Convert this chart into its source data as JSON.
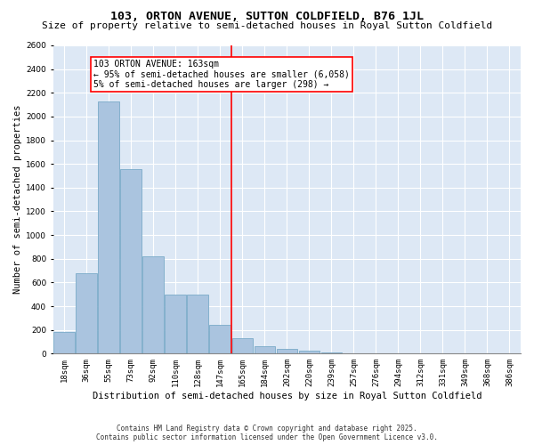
{
  "title": "103, ORTON AVENUE, SUTTON COLDFIELD, B76 1JL",
  "subtitle": "Size of property relative to semi-detached houses in Royal Sutton Coldfield",
  "xlabel": "Distribution of semi-detached houses by size in Royal Sutton Coldfield",
  "ylabel": "Number of semi-detached properties",
  "categories": [
    "18sqm",
    "36sqm",
    "55sqm",
    "73sqm",
    "92sqm",
    "110sqm",
    "128sqm",
    "147sqm",
    "165sqm",
    "184sqm",
    "202sqm",
    "220sqm",
    "239sqm",
    "257sqm",
    "276sqm",
    "294sqm",
    "312sqm",
    "331sqm",
    "349sqm",
    "368sqm",
    "386sqm"
  ],
  "bar_heights": [
    180,
    680,
    2130,
    1560,
    820,
    500,
    500,
    240,
    130,
    60,
    40,
    25,
    10,
    5,
    0,
    0,
    5,
    0,
    0,
    0,
    0
  ],
  "bar_color": "#aac4df",
  "bar_edge_color": "#7aaac8",
  "vline_color": "red",
  "vline_x": 7.5,
  "annotation_text": "103 ORTON AVENUE: 163sqm\n← 95% of semi-detached houses are smaller (6,058)\n5% of semi-detached houses are larger (298) →",
  "annotation_box_color": "white",
  "annotation_box_edge": "red",
  "ylim": [
    0,
    2600
  ],
  "yticks": [
    0,
    200,
    400,
    600,
    800,
    1000,
    1200,
    1400,
    1600,
    1800,
    2000,
    2200,
    2400,
    2600
  ],
  "bg_color": "#dde8f5",
  "footer_text": "Contains HM Land Registry data © Crown copyright and database right 2025.\nContains public sector information licensed under the Open Government Licence v3.0.",
  "title_fontsize": 9.5,
  "subtitle_fontsize": 8,
  "tick_fontsize": 6.5,
  "ylabel_fontsize": 7.5,
  "xlabel_fontsize": 7.5,
  "footer_fontsize": 5.5,
  "annot_fontsize": 7
}
